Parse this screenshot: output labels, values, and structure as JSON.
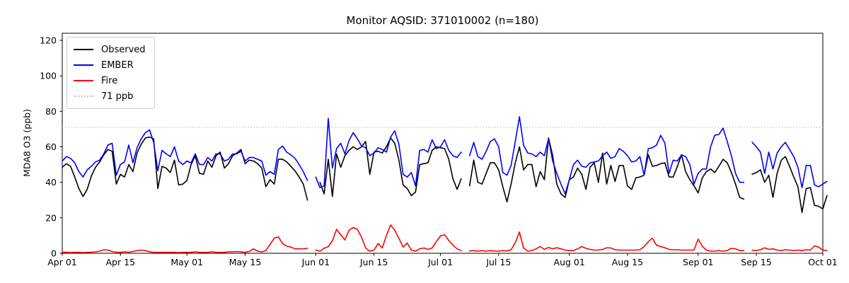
{
  "figure": {
    "title": "Monitor AQSID: 371010002 (n=180)",
    "background": "#ffffff"
  },
  "legend": {
    "items": [
      {
        "label": "Observed",
        "color": "#000000",
        "style": "solid"
      },
      {
        "label": "EMBER",
        "color": "#0000ff",
        "style": "solid"
      },
      {
        "label": "Fire",
        "color": "#ff0000",
        "style": "solid"
      },
      {
        "label": "71 ppb",
        "color": "#c8c8c8",
        "style": "dotted"
      }
    ]
  },
  "chart_data": {
    "type": "line",
    "title": "Monitor AQSID: 371010002 (n=180)",
    "xlabel": "",
    "ylabel": "MDA8 O3 (ppb)",
    "ylim": [
      0,
      124
    ],
    "yticks": [
      0,
      20,
      40,
      60,
      80,
      100,
      120
    ],
    "xlim": [
      0,
      183
    ],
    "x_unit": "days since Apr 01",
    "xticks": [
      {
        "day": 0,
        "label": "Apr 01"
      },
      {
        "day": 14,
        "label": "Apr 15"
      },
      {
        "day": 30,
        "label": "May 01"
      },
      {
        "day": 44,
        "label": "May 15"
      },
      {
        "day": 61,
        "label": "Jun 01"
      },
      {
        "day": 75,
        "label": "Jun 15"
      },
      {
        "day": 91,
        "label": "Jul 01"
      },
      {
        "day": 105,
        "label": "Jul 15"
      },
      {
        "day": 122,
        "label": "Aug 01"
      },
      {
        "day": 136,
        "label": "Aug 15"
      },
      {
        "day": 153,
        "label": "Sep 01"
      },
      {
        "day": 167,
        "label": "Sep 15"
      },
      {
        "day": 183,
        "label": "Oct 01"
      }
    ],
    "grid": false,
    "legend_position": "upper left",
    "threshold": {
      "value": 71,
      "label": "71 ppb",
      "color": "#c8c8c8",
      "style": "dotted"
    },
    "series": [
      {
        "name": "Observed",
        "color": "#000000",
        "values": [
          48.5,
          50.5,
          49,
          43,
          36.5,
          32,
          36,
          43.5,
          48.5,
          51.5,
          55.5,
          58.5,
          57.5,
          39,
          44.5,
          43,
          50,
          46,
          56.5,
          61.5,
          65,
          65.5,
          64.5,
          36.5,
          49,
          48,
          45.5,
          52.5,
          38.5,
          39,
          41,
          50,
          55,
          45,
          44.5,
          52,
          48.5,
          55,
          57,
          48,
          50.5,
          55,
          56.5,
          58.5,
          50.5,
          52.5,
          52,
          50.5,
          48,
          37.5,
          41.5,
          39,
          53,
          53,
          51.5,
          49,
          46.5,
          43,
          39,
          30,
          null,
          null,
          40,
          33.5,
          53,
          32,
          56,
          48.5,
          55,
          58,
          60,
          58.5,
          60,
          63,
          44.5,
          57,
          57.5,
          56.5,
          60,
          65,
          62,
          52.5,
          38.5,
          36.5,
          32.5,
          34.5,
          50,
          50.5,
          51,
          58,
          60,
          59.5,
          59,
          53,
          42,
          36,
          42,
          null,
          38,
          52.5,
          40,
          39,
          45,
          51,
          51,
          47,
          37.5,
          29,
          39,
          51,
          60,
          47,
          50,
          50,
          37.5,
          46,
          41.5,
          65,
          55,
          39,
          33.5,
          31.5,
          41.5,
          43,
          48,
          44.5,
          36,
          48.5,
          51,
          40,
          56.5,
          39,
          49.5,
          40.5,
          49.5,
          49.5,
          38,
          36,
          42.5,
          43,
          44,
          55.5,
          49,
          49.5,
          50.5,
          51,
          43,
          43,
          49,
          55.5,
          46,
          41.5,
          38,
          34,
          42.5,
          46,
          47.5,
          45.5,
          49,
          53,
          51,
          45.5,
          39,
          31.5,
          30.5,
          null,
          44.5,
          45.5,
          47,
          40,
          44,
          31.5,
          45,
          52.5,
          54.5,
          49,
          43,
          37.5,
          23,
          36.5,
          37,
          27,
          26.5,
          25,
          32.5
        ]
      },
      {
        "name": "EMBER",
        "color": "#0000ff",
        "values": [
          52,
          54.5,
          53.5,
          51,
          46,
          43,
          47,
          49,
          51.5,
          52.5,
          56,
          61,
          62,
          44,
          50,
          51.5,
          61,
          51,
          59.5,
          64.5,
          68,
          69.5,
          62.5,
          46.5,
          58,
          56,
          54.5,
          60,
          52,
          50,
          52,
          51,
          56,
          50,
          50,
          54,
          52,
          56,
          56,
          52,
          53,
          56,
          56,
          57.5,
          52,
          54,
          54,
          53,
          52,
          44,
          46,
          44.5,
          58.5,
          60.5,
          57,
          55.5,
          53.5,
          50,
          46,
          41,
          null,
          43,
          37,
          38,
          76,
          48,
          59,
          62,
          56,
          63.5,
          68,
          64.5,
          60.5,
          59.5,
          55,
          56.5,
          59.5,
          58.5,
          57,
          65.5,
          69,
          61.5,
          44.5,
          43,
          45.5,
          38,
          58,
          58.5,
          57,
          64,
          59,
          60,
          64,
          58,
          55,
          54,
          57,
          null,
          55,
          62.5,
          54.5,
          53,
          57.5,
          63,
          64.5,
          60,
          45.5,
          44,
          49.5,
          63,
          77,
          61,
          56.5,
          56,
          54.5,
          57,
          55,
          64.5,
          52,
          45,
          39,
          33.5,
          41.5,
          50,
          52.5,
          49,
          48.5,
          51,
          51.5,
          52,
          55,
          57,
          53.5,
          54.5,
          59,
          57.5,
          55,
          51.5,
          52,
          54.5,
          44,
          59,
          59.5,
          61,
          66.5,
          62,
          45,
          52.5,
          52,
          55.5,
          54.5,
          50,
          39,
          45,
          47.5,
          47.5,
          60,
          66.5,
          67,
          70.5,
          63,
          55,
          45,
          40,
          40,
          null,
          62.5,
          60,
          57,
          45,
          57,
          47.5,
          56.5,
          60,
          62.5,
          58.5,
          54.5,
          48.5,
          37,
          49.5,
          49.5,
          38.5,
          37.5,
          39,
          40.5
        ]
      },
      {
        "name": "Fire",
        "color": "#ff0000",
        "values": [
          0.5,
          0.6,
          0.4,
          0.5,
          0.5,
          0.4,
          0.5,
          0.6,
          0.8,
          1.2,
          2,
          1.8,
          1,
          0.6,
          0.5,
          0.8,
          0.6,
          1,
          1.5,
          1.8,
          1.5,
          0.8,
          0.5,
          0.5,
          0.5,
          0.5,
          0.5,
          0.5,
          0.4,
          0.5,
          0.5,
          0.5,
          0.8,
          0.5,
          0.5,
          0.5,
          0.8,
          0.5,
          0.5,
          0.5,
          0.8,
          0.8,
          1,
          0.8,
          0.5,
          1,
          2.5,
          1.2,
          0.8,
          1.5,
          5,
          8.5,
          9.3,
          5.5,
          4,
          3.5,
          2.5,
          2.5,
          2.5,
          2.8,
          null,
          1.8,
          1.2,
          2.8,
          3.8,
          7,
          13.5,
          10.5,
          7.5,
          13,
          14.5,
          13.5,
          9,
          3,
          1.2,
          1.8,
          5.5,
          3,
          10,
          16,
          13,
          8.5,
          3.5,
          5.8,
          1.8,
          1.2,
          2.5,
          3,
          2.2,
          3,
          6.5,
          9.8,
          10.4,
          7.2,
          4.5,
          2.5,
          1.5,
          null,
          1.3,
          1.5,
          1.2,
          1.5,
          1.2,
          1.5,
          1.3,
          1.2,
          1.5,
          1.3,
          2,
          6,
          12,
          3,
          1.2,
          1.5,
          2.5,
          3.8,
          2.2,
          3.3,
          2.5,
          3.1,
          2.5,
          1.8,
          1.5,
          1.5,
          2.5,
          3.8,
          2.8,
          2.2,
          1.8,
          1.8,
          2.2,
          3.1,
          3,
          2,
          1.8,
          1.8,
          1.8,
          1.8,
          1.8,
          2,
          3.8,
          6.5,
          8.5,
          4.5,
          3.8,
          3.1,
          2.2,
          2,
          2,
          1.8,
          1.8,
          1.8,
          1.8,
          8,
          4,
          1.8,
          1.2,
          1.2,
          1.5,
          1.2,
          1.5,
          2.8,
          2.5,
          1.5,
          1.5,
          null,
          1.8,
          1.5,
          2,
          3.1,
          2.2,
          2.5,
          1.8,
          1.5,
          2,
          1.8,
          1.5,
          1.8,
          1.5,
          2,
          1.8,
          4.2,
          3.5,
          1.8,
          1.5
        ]
      }
    ]
  }
}
